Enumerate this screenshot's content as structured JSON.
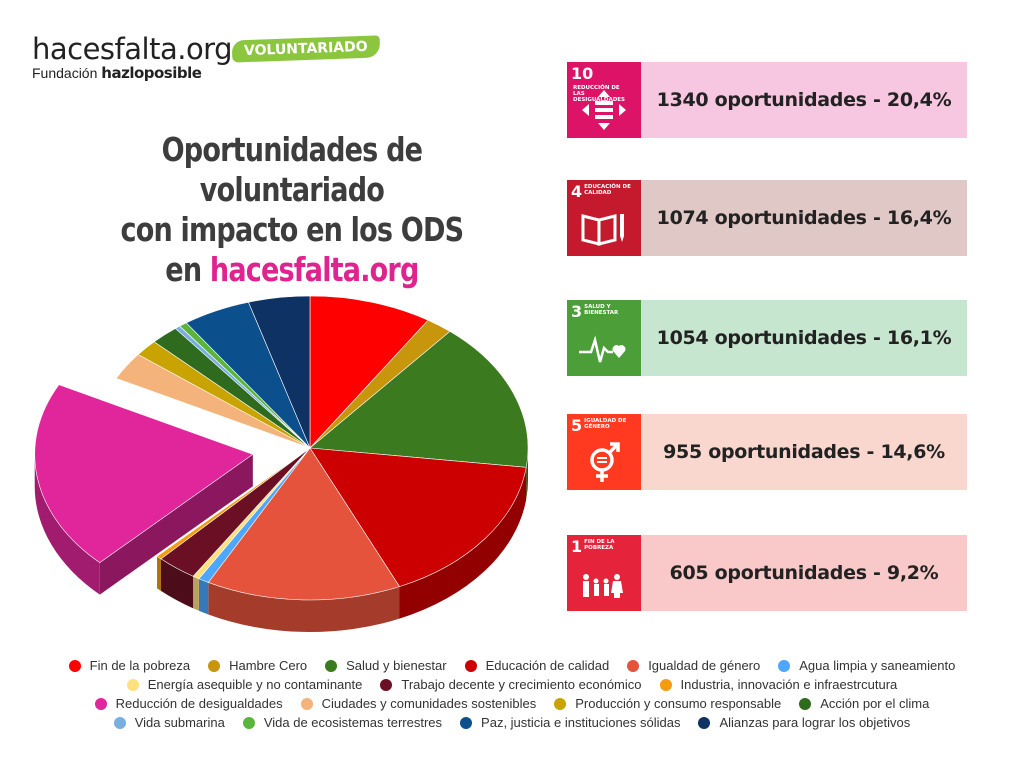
{
  "brand": {
    "name": "hacesfalta.org",
    "sub_prefix": "Fundación",
    "sub_name": "hazloposible",
    "badge": "VOLUNTARIADO"
  },
  "title": {
    "line1": "Oportunidades de voluntariado",
    "line2": "con impacto en los ODS",
    "line3_prefix": "en",
    "line3_accent": "hacesfalta.org"
  },
  "cards": [
    {
      "num": "10",
      "label": "Reducción de las desigualdades",
      "stat": "1340 oportunidades - 20,4%",
      "icon_color": "#dd1367",
      "bg": "#f7c6e0",
      "icon": "equals-arrows-icon"
    },
    {
      "num": "4",
      "label": "Educación de calidad",
      "stat": "1074 oportunidades - 16,4%",
      "icon_color": "#c5192d",
      "bg": "#e0c8c6",
      "icon": "book-pencil-icon"
    },
    {
      "num": "3",
      "label": "Salud y bienestar",
      "stat": "1054 oportunidades - 16,1%",
      "icon_color": "#4c9f38",
      "bg": "#c7e6cf",
      "icon": "heartbeat-icon"
    },
    {
      "num": "5",
      "label": "Igualdad de género",
      "stat": "955 oportunidades - 14,6%",
      "icon_color": "#ff3a21",
      "bg": "#f9d7ce",
      "icon": "gender-equality-icon"
    },
    {
      "num": "1",
      "label": "Fin de la pobreza",
      "stat": "605 oportunidades - 9,2%",
      "icon_color": "#e5243b",
      "bg": "#f9c9c9",
      "icon": "family-icon"
    }
  ],
  "chart_data": {
    "type": "pie",
    "title": "",
    "categories": [
      "Fin de la pobreza",
      "Hambre Cero",
      "Salud y bienestar",
      "Educación de calidad",
      "Igualdad de género",
      "Agua limpia y saneamiento",
      "Energía asequible y no contaminante",
      "Trabajo decente y crecimiento económico",
      "Industria, innovación e infraestrcutura",
      "Reducción de desigualdades",
      "Ciudades y comunidades sostenibles",
      "Producción y consumo responsable",
      "Acción por el clima",
      "Vida submarina",
      "Vida de ecosistemas terrestres",
      "Paz, justicia e instituciones sólidas",
      "Alianzas para lograr los objetivos"
    ],
    "values": [
      9.2,
      2.0,
      16.1,
      16.4,
      14.6,
      0.8,
      0.5,
      3.0,
      0.4,
      20.4,
      3.0,
      1.8,
      2.1,
      0.4,
      0.6,
      5.1,
      4.6
    ],
    "colors": [
      "#ff0000",
      "#c8960c",
      "#3b7a1e",
      "#cc0000",
      "#e5533c",
      "#4da6ff",
      "#ffe080",
      "#6b1024",
      "#f59b12",
      "#e0269a",
      "#f4b37a",
      "#c9a300",
      "#2e6b1e",
      "#79aee0",
      "#5bb53c",
      "#0b4f8c",
      "#0d3263"
    ],
    "exploded": "Reducción de desigualdades",
    "legend_position": "bottom"
  },
  "legend_rows": [
    [
      0,
      1,
      2,
      3,
      4,
      5
    ],
    [
      6,
      7,
      8
    ],
    [
      9,
      10,
      11,
      12
    ],
    [
      13,
      14,
      15,
      16
    ]
  ]
}
